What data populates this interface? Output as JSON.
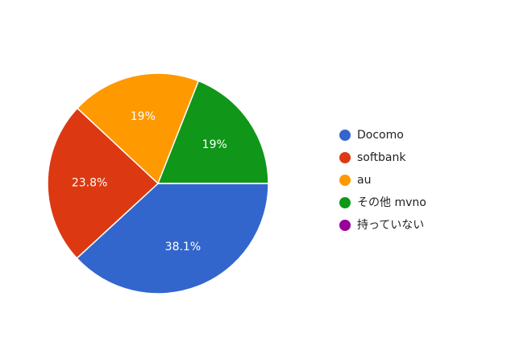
{
  "chart_data": {
    "type": "pie",
    "categories": [
      "Docomo",
      "softbank",
      "au",
      "その他 mvno",
      "持っていない"
    ],
    "values": [
      38.1,
      23.8,
      19,
      19,
      0
    ],
    "value_labels": [
      "38.1%",
      "23.8%",
      "19%",
      "19%",
      null
    ],
    "colors": [
      "#3366cc",
      "#dc3912",
      "#ff9900",
      "#109618",
      "#990099"
    ],
    "legend": "right"
  }
}
